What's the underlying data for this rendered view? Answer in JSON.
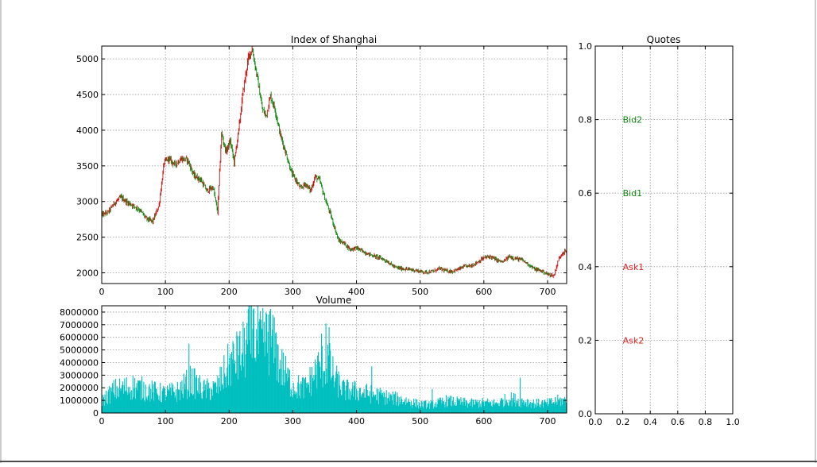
{
  "colors": {
    "up": "#cc1111",
    "down": "#118811",
    "volume": "#00bfbf",
    "bid": "#118811",
    "ask": "#dd2222"
  },
  "chart_data": [
    {
      "id": "price",
      "type": "candlestick",
      "title": "Index of Shanghai",
      "xlim": [
        0,
        730
      ],
      "ylim": [
        1850,
        5180
      ],
      "xticks": [
        0,
        100,
        200,
        300,
        400,
        500,
        600,
        700
      ],
      "yticks": [
        2000,
        2500,
        3000,
        3500,
        4000,
        4500,
        5000
      ],
      "grid": true,
      "path": [
        [
          0,
          2810
        ],
        [
          10,
          2850
        ],
        [
          20,
          2980
        ],
        [
          30,
          3060
        ],
        [
          40,
          2990
        ],
        [
          50,
          2940
        ],
        [
          60,
          2880
        ],
        [
          70,
          2760
        ],
        [
          80,
          2720
        ],
        [
          90,
          2950
        ],
        [
          98,
          3550
        ],
        [
          105,
          3600
        ],
        [
          115,
          3520
        ],
        [
          125,
          3600
        ],
        [
          135,
          3580
        ],
        [
          145,
          3360
        ],
        [
          155,
          3310
        ],
        [
          165,
          3150
        ],
        [
          175,
          3200
        ],
        [
          182,
          2850
        ],
        [
          188,
          3950
        ],
        [
          195,
          3700
        ],
        [
          202,
          3850
        ],
        [
          208,
          3550
        ],
        [
          215,
          4000
        ],
        [
          222,
          4550
        ],
        [
          230,
          5000
        ],
        [
          236,
          5150
        ],
        [
          244,
          4750
        ],
        [
          252,
          4300
        ],
        [
          258,
          4200
        ],
        [
          265,
          4480
        ],
        [
          272,
          4300
        ],
        [
          280,
          3950
        ],
        [
          290,
          3650
        ],
        [
          298,
          3400
        ],
        [
          305,
          3300
        ],
        [
          312,
          3180
        ],
        [
          320,
          3250
        ],
        [
          328,
          3150
        ],
        [
          335,
          3350
        ],
        [
          342,
          3300
        ],
        [
          350,
          3050
        ],
        [
          358,
          2850
        ],
        [
          365,
          2650
        ],
        [
          372,
          2450
        ],
        [
          380,
          2420
        ],
        [
          390,
          2330
        ],
        [
          400,
          2350
        ],
        [
          410,
          2300
        ],
        [
          420,
          2260
        ],
        [
          430,
          2230
        ],
        [
          440,
          2200
        ],
        [
          450,
          2150
        ],
        [
          460,
          2080
        ],
        [
          470,
          2060
        ],
        [
          480,
          2050
        ],
        [
          490,
          2040
        ],
        [
          500,
          2020
        ],
        [
          510,
          2010
        ],
        [
          520,
          2020
        ],
        [
          530,
          2060
        ],
        [
          540,
          2030
        ],
        [
          550,
          2020
        ],
        [
          560,
          2050
        ],
        [
          570,
          2090
        ],
        [
          580,
          2100
        ],
        [
          590,
          2150
        ],
        [
          600,
          2210
        ],
        [
          610,
          2230
        ],
        [
          620,
          2180
        ],
        [
          630,
          2150
        ],
        [
          640,
          2230
        ],
        [
          650,
          2200
        ],
        [
          660,
          2180
        ],
        [
          670,
          2120
        ],
        [
          680,
          2050
        ],
        [
          690,
          2030
        ],
        [
          700,
          1980
        ],
        [
          710,
          1960
        ],
        [
          717,
          2180
        ],
        [
          723,
          2280
        ],
        [
          730,
          2310
        ]
      ]
    },
    {
      "id": "volume",
      "type": "bar",
      "title": "Volume",
      "xlim": [
        0,
        730
      ],
      "ylim": [
        0,
        8500000
      ],
      "xticks": [
        0,
        100,
        200,
        300,
        400,
        500,
        600,
        700
      ],
      "yticks": [
        0,
        1000000,
        2000000,
        3000000,
        4000000,
        5000000,
        6000000,
        7000000,
        8000000
      ],
      "grid": true,
      "profile": [
        [
          0,
          1000000
        ],
        [
          20,
          1900000
        ],
        [
          50,
          2200000
        ],
        [
          80,
          1800000
        ],
        [
          100,
          1600000
        ],
        [
          120,
          1800000
        ],
        [
          140,
          2700000
        ],
        [
          160,
          1900000
        ],
        [
          180,
          2000000
        ],
        [
          200,
          4000000
        ],
        [
          220,
          4900000
        ],
        [
          235,
          6400000
        ],
        [
          250,
          5700000
        ],
        [
          265,
          6200000
        ],
        [
          280,
          4000000
        ],
        [
          300,
          2200000
        ],
        [
          320,
          2100000
        ],
        [
          340,
          3700000
        ],
        [
          355,
          4300000
        ],
        [
          365,
          2900000
        ],
        [
          380,
          1900000
        ],
        [
          400,
          1800000
        ],
        [
          420,
          1600000
        ],
        [
          450,
          1300000
        ],
        [
          480,
          1000000
        ],
        [
          500,
          700000
        ],
        [
          520,
          700000
        ],
        [
          540,
          1000000
        ],
        [
          560,
          900000
        ],
        [
          580,
          800000
        ],
        [
          600,
          850000
        ],
        [
          620,
          800000
        ],
        [
          640,
          1200000
        ],
        [
          660,
          1000000
        ],
        [
          680,
          800000
        ],
        [
          700,
          800000
        ],
        [
          715,
          1000000
        ],
        [
          730,
          1050000
        ]
      ],
      "spikes": [
        [
          137,
          5500000
        ],
        [
          213,
          6100000
        ],
        [
          231,
          8500000
        ],
        [
          238,
          8200000
        ],
        [
          262,
          7800000
        ],
        [
          274,
          6400000
        ],
        [
          345,
          6300000
        ],
        [
          352,
          7100000
        ],
        [
          357,
          6800000
        ],
        [
          424,
          3700000
        ],
        [
          519,
          1900000
        ],
        [
          657,
          2800000
        ]
      ]
    },
    {
      "id": "quotes",
      "type": "scatter",
      "title": "Quotes",
      "xlim": [
        0,
        1
      ],
      "ylim": [
        0,
        1
      ],
      "xticks": [
        0.0,
        0.2,
        0.4,
        0.6,
        0.8,
        1.0
      ],
      "yticks": [
        0.0,
        0.2,
        0.4,
        0.6,
        0.8,
        1.0
      ],
      "grid": true,
      "annotations": [
        {
          "text": "Bid2",
          "x": 0.2,
          "y": 0.8,
          "kind": "bid"
        },
        {
          "text": "Bid1",
          "x": 0.2,
          "y": 0.6,
          "kind": "bid"
        },
        {
          "text": "Ask1",
          "x": 0.2,
          "y": 0.4,
          "kind": "ask"
        },
        {
          "text": "Ask2",
          "x": 0.2,
          "y": 0.2,
          "kind": "ask"
        }
      ]
    }
  ]
}
